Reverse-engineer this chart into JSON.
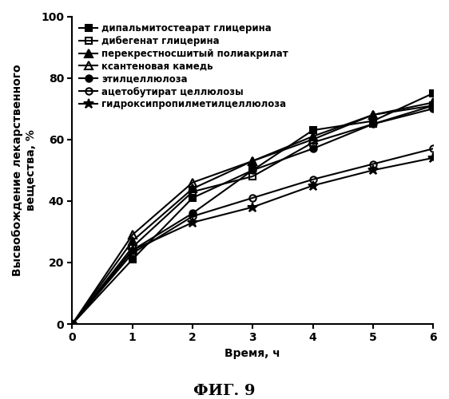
{
  "title": "ФИГ. 9",
  "xlabel": "Время, ч",
  "ylabel": "Высвобождение лекарственного\nвещества, %",
  "xlim": [
    0,
    6
  ],
  "ylim": [
    0,
    100
  ],
  "xticks": [
    0,
    1,
    2,
    3,
    4,
    5,
    6
  ],
  "yticks": [
    0,
    20,
    40,
    60,
    80,
    100
  ],
  "series": [
    {
      "label": "дипальмитостеарат глицерина",
      "x": [
        0,
        1,
        2,
        3,
        4,
        5,
        6
      ],
      "y": [
        0,
        21,
        41,
        50,
        63,
        66,
        75
      ],
      "marker": "s",
      "fillstyle": "full",
      "color": "black",
      "linewidth": 1.5,
      "markersize": 6
    },
    {
      "label": "дибегенат глицерина",
      "x": [
        0,
        1,
        2,
        3,
        4,
        5,
        6
      ],
      "y": [
        0,
        25,
        43,
        48,
        59,
        65,
        71
      ],
      "marker": "s",
      "fillstyle": "none",
      "color": "black",
      "linewidth": 1.5,
      "markersize": 6
    },
    {
      "label": "перекрестносшитый полиакрилат",
      "x": [
        0,
        1,
        2,
        3,
        4,
        5,
        6
      ],
      "y": [
        0,
        27,
        44,
        53,
        61,
        68,
        72
      ],
      "marker": "^",
      "fillstyle": "full",
      "color": "black",
      "linewidth": 1.5,
      "markersize": 7
    },
    {
      "label": "ксантеновая камедь",
      "x": [
        0,
        1,
        2,
        3,
        4,
        5,
        6
      ],
      "y": [
        0,
        29,
        46,
        53,
        60,
        68,
        71
      ],
      "marker": "^",
      "fillstyle": "none",
      "color": "black",
      "linewidth": 1.5,
      "markersize": 7
    },
    {
      "label": "этилцеллюлоза",
      "x": [
        0,
        1,
        2,
        3,
        4,
        5,
        6
      ],
      "y": [
        0,
        24,
        36,
        50,
        57,
        65,
        70
      ],
      "marker": "o",
      "fillstyle": "full",
      "color": "black",
      "linewidth": 1.5,
      "markersize": 6
    },
    {
      "label": "ацетобутират целлюлозы",
      "x": [
        0,
        1,
        2,
        3,
        4,
        5,
        6
      ],
      "y": [
        0,
        23,
        35,
        41,
        47,
        52,
        57
      ],
      "marker": "o",
      "fillstyle": "none",
      "color": "black",
      "linewidth": 1.5,
      "markersize": 6
    },
    {
      "label": "гидроксипропилметилцеллюлоза",
      "x": [
        0,
        1,
        2,
        3,
        4,
        5,
        6
      ],
      "y": [
        0,
        24,
        33,
        38,
        45,
        50,
        54
      ],
      "marker": "*",
      "fillstyle": "full",
      "color": "black",
      "linewidth": 1.5,
      "markersize": 9
    }
  ],
  "legend_fontsize": 8.5,
  "axis_label_fontsize": 10,
  "tick_fontsize": 10,
  "title_fontsize": 14,
  "background_color": "#ffffff"
}
